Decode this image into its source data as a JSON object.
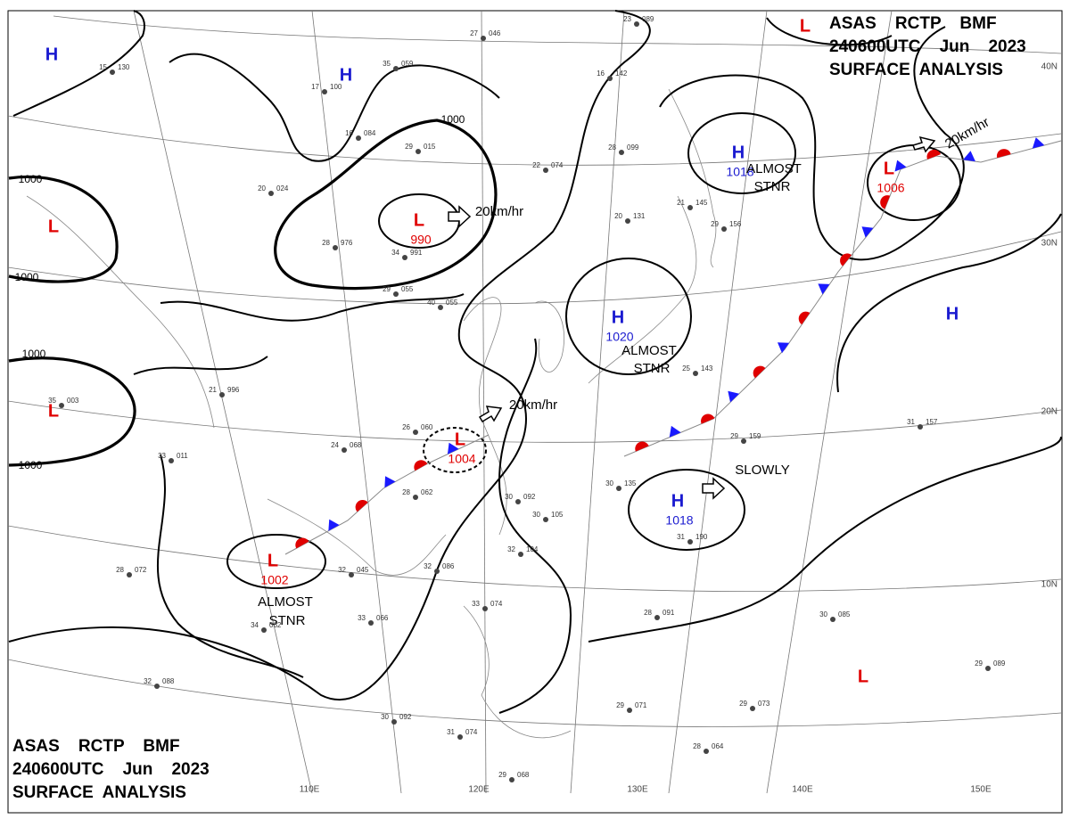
{
  "header_top": {
    "line1": "ASAS    RCTP    BMF",
    "line2": "240600UTC    Jun    2023",
    "line3": "SURFACE  ANALYSIS"
  },
  "header_bottom": {
    "line1": "ASAS    RCTP    BMF",
    "line2": "240600UTC    Jun    2023",
    "line3": "SURFACE  ANALYSIS"
  },
  "longitude_labels": [
    "110E",
    "120E",
    "130E",
    "140E",
    "150E"
  ],
  "latitude_labels": [
    "40N",
    "30N",
    "20N",
    "10N"
  ],
  "pressure_centers": [
    {
      "type": "H",
      "value": null
    },
    {
      "type": "H",
      "value": null
    },
    {
      "type": "L",
      "value": 990
    },
    {
      "type": "H",
      "value": 1018
    },
    {
      "type": "L",
      "value": 1006
    },
    {
      "type": "L",
      "value": null
    },
    {
      "type": "H",
      "value": 1020
    },
    {
      "type": "L",
      "value": null
    },
    {
      "type": "L",
      "value": 1004
    },
    {
      "type": "H",
      "value": 1018
    },
    {
      "type": "L",
      "value": 1002
    },
    {
      "type": "L",
      "value": null
    },
    {
      "type": "H",
      "value": null
    },
    {
      "type": "L",
      "value": null
    }
  ],
  "isobar_labels": [
    "1000",
    "1000",
    "1000",
    "1000",
    "1000"
  ],
  "annotations": [
    "20km/hr",
    "20km/hr",
    "20km/hr",
    "SLOWLY",
    "ALMOST",
    "STNR",
    "ALMOST",
    "STNR",
    "ALMOST",
    "STNR"
  ],
  "stations": [
    {
      "temp": "27",
      "pressure": "046"
    },
    {
      "temp": "15",
      "pressure": "130"
    },
    {
      "temp": "35",
      "pressure": "059"
    },
    {
      "temp": "17",
      "pressure": "100"
    },
    {
      "temp": "16",
      "pressure": "084"
    },
    {
      "temp": "29",
      "pressure": "015"
    },
    {
      "temp": "20",
      "pressure": "024"
    },
    {
      "temp": "28",
      "pressure": "976"
    },
    {
      "temp": "34",
      "pressure": "991"
    },
    {
      "temp": "29",
      "pressure": "055"
    },
    {
      "temp": "40",
      "pressure": "055"
    },
    {
      "temp": "22",
      "pressure": "074"
    },
    {
      "temp": "28",
      "pressure": "099"
    },
    {
      "temp": "20",
      "pressure": "131"
    },
    {
      "temp": "21",
      "pressure": "145"
    },
    {
      "temp": "29",
      "pressure": "156"
    },
    {
      "temp": "16",
      "pressure": "142"
    },
    {
      "temp": "23",
      "pressure": "089"
    },
    {
      "temp": "21",
      "pressure": "996"
    },
    {
      "temp": "35",
      "pressure": "003"
    },
    {
      "temp": "33",
      "pressure": "011"
    },
    {
      "temp": "26",
      "pressure": "060"
    },
    {
      "temp": "24",
      "pressure": "068"
    },
    {
      "temp": "28",
      "pressure": "062"
    },
    {
      "temp": "30",
      "pressure": "092"
    },
    {
      "temp": "28",
      "pressure": "072"
    },
    {
      "temp": "32",
      "pressure": "045"
    },
    {
      "temp": "33",
      "pressure": "066"
    },
    {
      "temp": "34",
      "pressure": "062"
    },
    {
      "temp": "32",
      "pressure": "088"
    },
    {
      "temp": "30",
      "pressure": "092"
    },
    {
      "temp": "31",
      "pressure": "074"
    },
    {
      "temp": "29",
      "pressure": "068"
    },
    {
      "temp": "33",
      "pressure": "074"
    },
    {
      "temp": "29",
      "pressure": "071"
    },
    {
      "temp": "28",
      "pressure": "091"
    },
    {
      "temp": "30",
      "pressure": "085"
    },
    {
      "temp": "29",
      "pressure": "089"
    },
    {
      "temp": "29",
      "pressure": "073"
    },
    {
      "temp": "28",
      "pressure": "064"
    },
    {
      "temp": "31",
      "pressure": "157"
    },
    {
      "temp": "29",
      "pressure": "159"
    },
    {
      "temp": "25",
      "pressure": "143"
    },
    {
      "temp": "31",
      "pressure": "190"
    },
    {
      "temp": "30",
      "pressure": "105"
    },
    {
      "temp": "32",
      "pressure": "104"
    },
    {
      "temp": "32",
      "pressure": "086"
    },
    {
      "temp": "30",
      "pressure": "135"
    }
  ]
}
